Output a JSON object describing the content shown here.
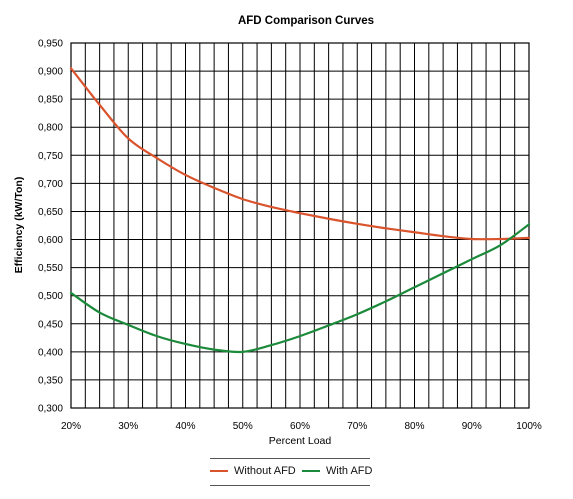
{
  "chart_data": {
    "type": "line",
    "title": "AFD Comparison Curves",
    "xlabel": "Percent Load",
    "ylabel": "Efficiency (kW/Ton)",
    "xlim": [
      20,
      100
    ],
    "ylim": [
      0.3,
      0.95
    ],
    "x_ticks": [
      "20%",
      "30%",
      "40%",
      "50%",
      "60%",
      "70%",
      "80%",
      "90%",
      "100%"
    ],
    "y_ticks": [
      "0,300",
      "0,350",
      "0,400",
      "0,450",
      "0,500",
      "0,550",
      "0,600",
      "0,650",
      "0,700",
      "0,750",
      "0,800",
      "0,850",
      "0,900",
      "0,950"
    ],
    "grid": true,
    "legend_position": "bottom-center",
    "x": [
      20,
      25,
      30,
      35,
      40,
      45,
      50,
      55,
      60,
      65,
      70,
      75,
      80,
      85,
      90,
      95,
      100
    ],
    "series": [
      {
        "name": "Without AFD",
        "color": "#d9532c",
        "values": [
          0.905,
          0.84,
          0.78,
          0.745,
          0.715,
          0.692,
          0.672,
          0.658,
          0.647,
          0.637,
          0.628,
          0.62,
          0.613,
          0.606,
          0.601,
          0.601,
          0.603
        ]
      },
      {
        "name": "With AFD",
        "color": "#1b8a3a",
        "values": [
          0.505,
          0.47,
          0.448,
          0.428,
          0.414,
          0.404,
          0.4,
          0.412,
          0.428,
          0.447,
          0.467,
          0.49,
          0.515,
          0.54,
          0.565,
          0.59,
          0.627
        ]
      }
    ]
  }
}
